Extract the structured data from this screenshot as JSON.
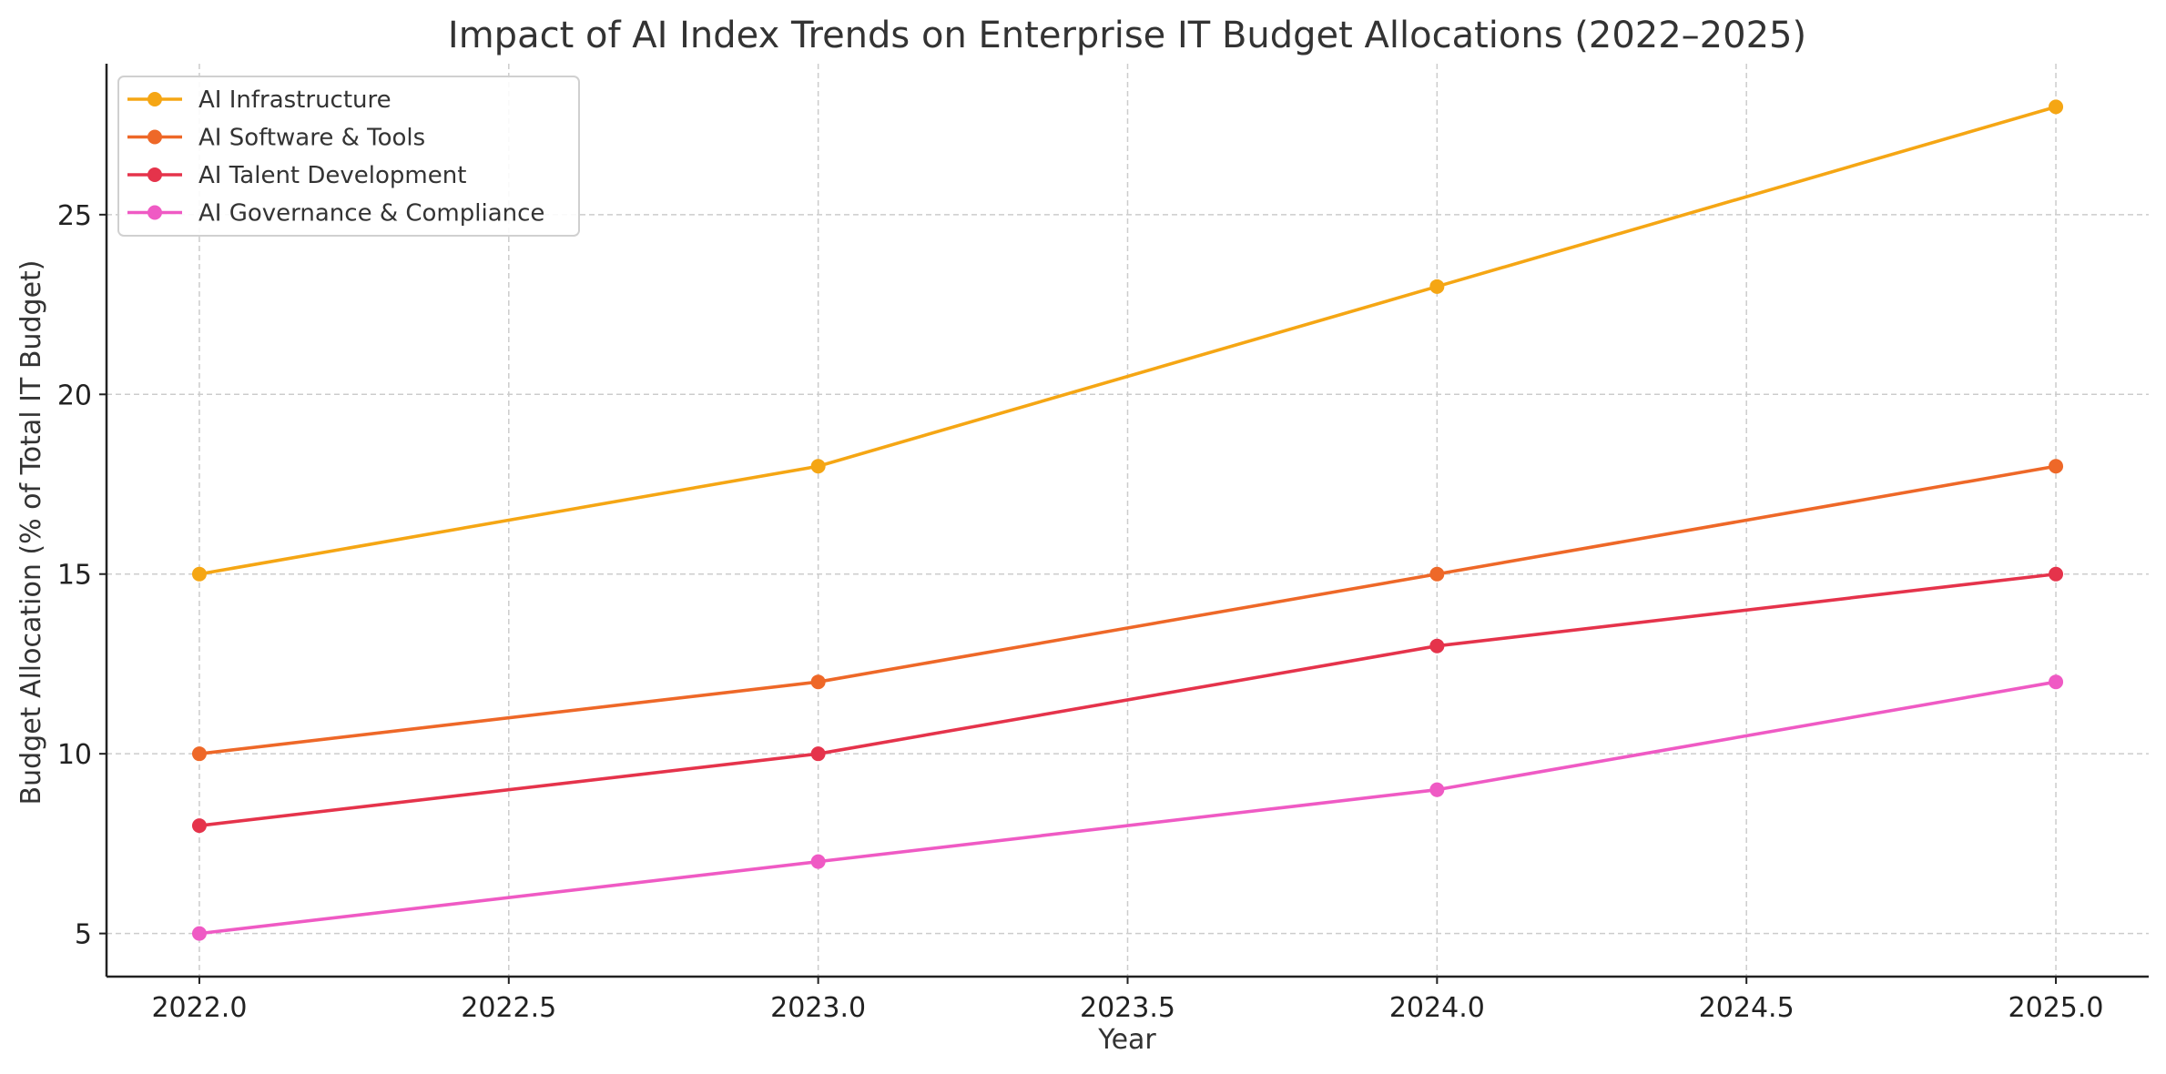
{
  "chart_data": {
    "type": "line",
    "title": "Impact of AI Index Trends on Enterprise IT Budget Allocations (2022–2025)",
    "xlabel": "Year",
    "ylabel": "Budget Allocation (% of Total IT Budget)",
    "x": [
      2022,
      2023,
      2024,
      2025
    ],
    "xlim": [
      2021.85,
      2025.15
    ],
    "ylim": [
      3.8,
      29.2
    ],
    "xticks": [
      2022.0,
      2022.5,
      2023.0,
      2023.5,
      2024.0,
      2024.5,
      2025.0
    ],
    "xtick_labels": [
      "2022.0",
      "2022.5",
      "2023.0",
      "2023.5",
      "2024.0",
      "2024.5",
      "2025.0"
    ],
    "yticks": [
      5,
      10,
      15,
      20,
      25
    ],
    "ytick_labels": [
      "5",
      "10",
      "15",
      "20",
      "25"
    ],
    "grid": true,
    "legend_position": "top-left",
    "series": [
      {
        "name": "AI Infrastructure",
        "color": "#f5a614",
        "values": [
          15,
          18,
          23,
          28
        ]
      },
      {
        "name": "AI Software & Tools",
        "color": "#ee6828",
        "values": [
          10,
          12,
          15,
          18
        ]
      },
      {
        "name": "AI Talent Development",
        "color": "#e5334b",
        "values": [
          8,
          10,
          13,
          15
        ]
      },
      {
        "name": "AI Governance & Compliance",
        "color": "#ef5ac4",
        "values": [
          5,
          7,
          9,
          12
        ]
      }
    ]
  }
}
